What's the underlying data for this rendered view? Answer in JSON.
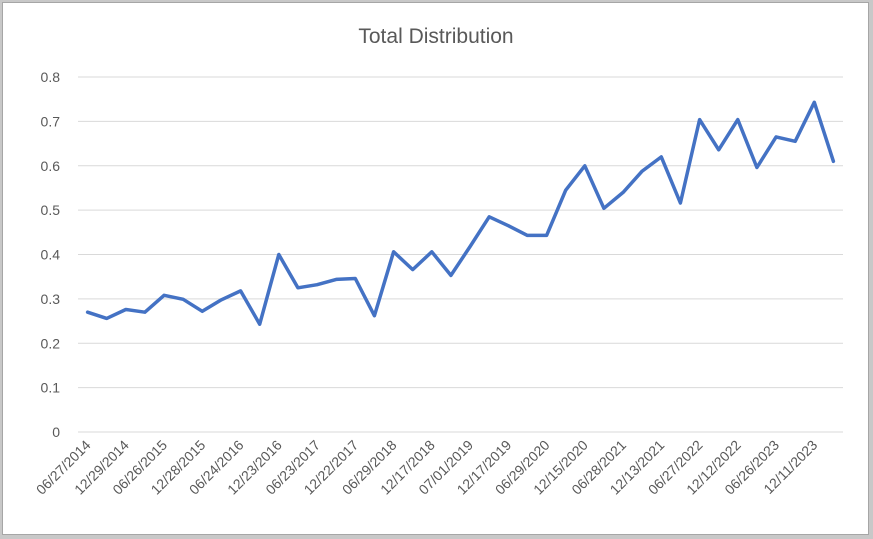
{
  "chart_data": {
    "type": "line",
    "title": "Total Distribution",
    "xlabel": "",
    "ylabel": "",
    "ylim": [
      0,
      0.8
    ],
    "yticks": [
      "0",
      "0.1",
      "0.2",
      "0.3",
      "0.4",
      "0.5",
      "0.6",
      "0.7",
      "0.8"
    ],
    "grid": true,
    "legend": "none",
    "line_color": "#4472C4",
    "x_tick_labels": [
      "06/27/2014",
      "12/29/2014",
      "06/26/2015",
      "12/28/2015",
      "06/24/2016",
      "12/23/2016",
      "06/23/2017",
      "12/22/2017",
      "06/29/2018",
      "12/17/2018",
      "07/01/2019",
      "12/17/2019",
      "06/29/2020",
      "12/15/2020",
      "06/28/2021",
      "12/13/2021",
      "06/27/2022",
      "12/12/2022",
      "06/26/2023",
      "12/11/2023"
    ],
    "series": [
      {
        "values": [
          0.27,
          0.256,
          0.276,
          0.27,
          0.308,
          0.299,
          0.272,
          0.298,
          0.318,
          0.243,
          0.4,
          0.325,
          0.332,
          0.344,
          0.346,
          0.262,
          0.406,
          0.366,
          0.406,
          0.353,
          0.418,
          0.485,
          0.465,
          0.443,
          0.443,
          0.545,
          0.6,
          0.504,
          0.54,
          0.588,
          0.62,
          0.516,
          0.704,
          0.636,
          0.704,
          0.596,
          0.665,
          0.655,
          0.743,
          0.61
        ]
      }
    ]
  }
}
